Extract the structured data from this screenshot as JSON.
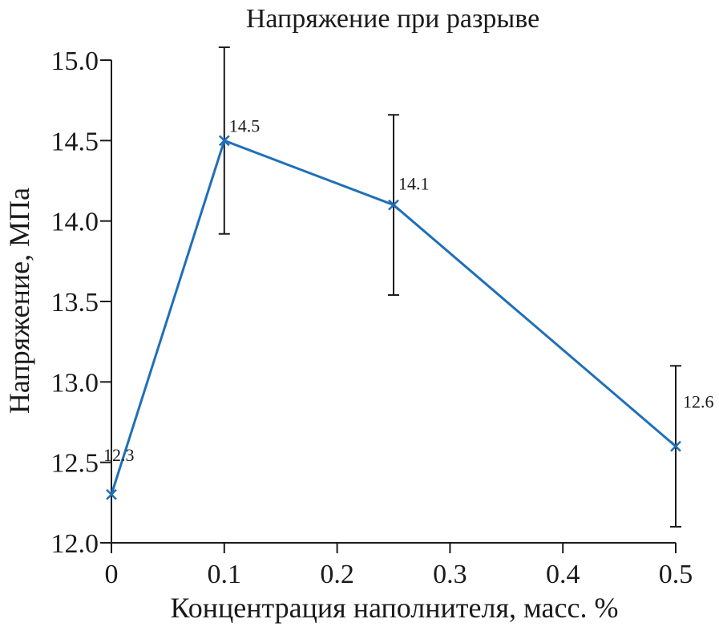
{
  "chart_data": {
    "type": "line",
    "title": "Напряжение при разрыве",
    "xlabel": "Концентрация наполнителя, масс. %",
    "ylabel": "Напряжение, МПа",
    "xlim": [
      0,
      0.5
    ],
    "ylim": [
      12.0,
      15.0
    ],
    "x_ticks": [
      0,
      0.1,
      0.2,
      0.3,
      0.4,
      0.5
    ],
    "x_tick_labels": [
      "0",
      "0.1",
      "0.2",
      "0.3",
      "0.4",
      "0.5"
    ],
    "y_ticks": [
      12.0,
      12.5,
      13.0,
      13.5,
      14.0,
      14.5,
      15.0
    ],
    "y_tick_labels": [
      "12.0",
      "12.5",
      "13.0",
      "13.5",
      "14.0",
      "14.5",
      "15.0"
    ],
    "grid": false,
    "legend": "none",
    "series": [
      {
        "x": [
          0,
          0.1,
          0.25,
          0.5
        ],
        "values": [
          12.3,
          14.5,
          14.1,
          12.6
        ],
        "error_low": [
          null,
          13.92,
          13.54,
          12.1
        ],
        "error_high": [
          null,
          15.08,
          14.66,
          13.1
        ],
        "data_labels": [
          "12.3",
          "14.5",
          "14.1",
          "12.6"
        ],
        "color": "#1f6fb8",
        "marker": "x"
      }
    ]
  }
}
